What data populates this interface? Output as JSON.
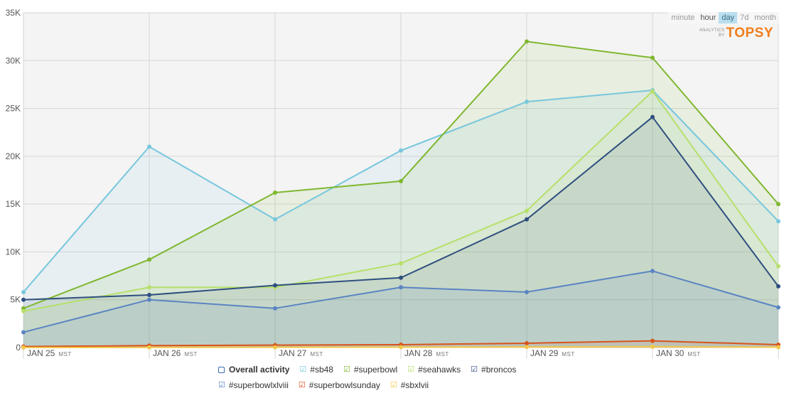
{
  "range_options": [
    {
      "label": "minute",
      "active": false
    },
    {
      "label": "hour",
      "active": false
    },
    {
      "label": "day",
      "active": true
    },
    {
      "label": "7d",
      "active": false
    },
    {
      "label": "month",
      "active": false
    }
  ],
  "brand": {
    "analytics": "ANALYTICS",
    "by": "BY",
    "logo": "TOPSY",
    "color": "#f07d1a"
  },
  "legend": {
    "overall": "Overall activity",
    "items": [
      {
        "label": "#sb48",
        "color": "#78c7dd"
      },
      {
        "label": "#superbowl",
        "color": "#7fb72f"
      },
      {
        "label": "#seahawks",
        "color": "#b6e06a"
      },
      {
        "label": "#broncos",
        "color": "#2f4f7f"
      },
      {
        "label": "#superbowlxlviii",
        "color": "#5b84c2"
      },
      {
        "label": "#superbowlsunday",
        "color": "#d8531c"
      },
      {
        "label": "#sbxlvii",
        "color": "#f2c84a"
      }
    ]
  },
  "chart_data": {
    "type": "area",
    "categories": [
      "JAN 25",
      "JAN 26",
      "JAN 27",
      "JAN 28",
      "JAN 29",
      "JAN 30",
      ""
    ],
    "tz_label": "MST",
    "ylim": [
      0,
      35000
    ],
    "yticks": [
      "0",
      "5K",
      "10K",
      "15K",
      "20K",
      "25K",
      "30K",
      "35K"
    ],
    "grid": true,
    "series": [
      {
        "name": "#sb48",
        "color": "#78c7dd",
        "values": [
          5800,
          21000,
          13400,
          20600,
          25700,
          26900,
          13200
        ]
      },
      {
        "name": "#superbowl",
        "color": "#7fb72f",
        "values": [
          4100,
          9200,
          16200,
          17400,
          32000,
          30300,
          15000
        ]
      },
      {
        "name": "#seahawks",
        "color": "#b6e06a",
        "values": [
          3800,
          6300,
          6300,
          8800,
          14300,
          26800,
          8500
        ]
      },
      {
        "name": "#broncos",
        "color": "#2f4f7f",
        "values": [
          5000,
          5500,
          6500,
          7300,
          13400,
          24100,
          6400
        ]
      },
      {
        "name": "#superbowlxlviii",
        "color": "#5b84c2",
        "values": [
          1600,
          5000,
          4100,
          6300,
          5800,
          8000,
          4200
        ]
      },
      {
        "name": "#superbowlsunday",
        "color": "#d8531c",
        "values": [
          100,
          200,
          250,
          300,
          450,
          700,
          300
        ]
      },
      {
        "name": "#sbxlvii",
        "color": "#f2c84a",
        "values": [
          0,
          20,
          30,
          40,
          60,
          80,
          40
        ]
      }
    ]
  }
}
